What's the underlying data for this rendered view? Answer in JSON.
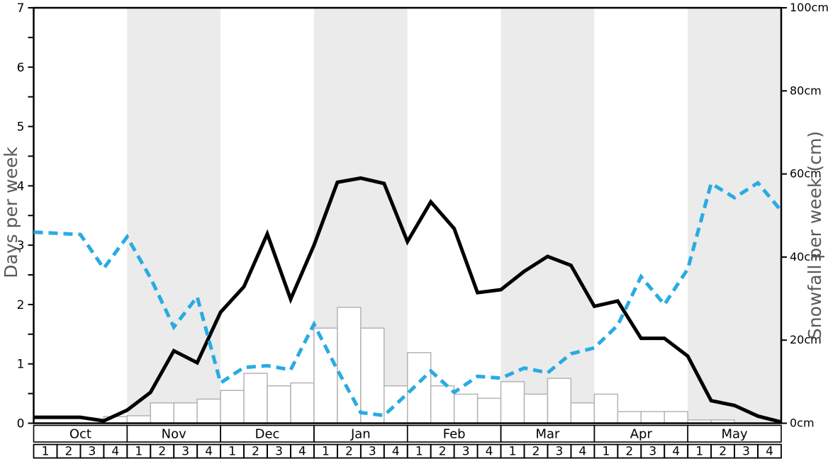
{
  "colors": {
    "band": "#ebebeb",
    "bar_fill": "#ffffff",
    "bar_stroke": "#b3b3b3",
    "frame": "#000000",
    "black_line": "#000000",
    "blue_line": "#29abe2",
    "axis_title": "#595959"
  },
  "chart_data": {
    "type": "line",
    "title": "",
    "x_unit": "week",
    "points_at": "week boundaries, 33 points from start of Oct to end of May",
    "months": [
      "Oct",
      "Nov",
      "Dec",
      "Jan",
      "Feb",
      "Mar",
      "Apr",
      "May"
    ],
    "week_labels": [
      "1",
      "2",
      "3",
      "4"
    ],
    "shaded_months": [
      "Nov",
      "Jan",
      "Mar",
      "May"
    ],
    "grid": "off",
    "legend": "none",
    "left_axis": {
      "label": "Days per week",
      "min": 0,
      "max": 7,
      "major_tick_labels": [
        "0",
        "1",
        "2",
        "3",
        "4",
        "5",
        "6",
        "7"
      ],
      "minor_tick_step": 0.5
    },
    "right_axis": {
      "label": "Snowfall per week (cm)",
      "min": 0,
      "max": 100,
      "tick_step": 20,
      "tick_labels": [
        "0cm",
        "20cm",
        "40cm",
        "60cm",
        "80cm",
        "100cm"
      ]
    },
    "series": [
      {
        "name": "black_line_days",
        "type": "line",
        "style": "solid",
        "axis": "left",
        "color": "#000000",
        "values": [
          0.1,
          0.1,
          0.1,
          0.04,
          0.22,
          0.52,
          1.22,
          1.02,
          1.87,
          2.3,
          3.19,
          2.09,
          3.0,
          4.06,
          4.13,
          4.04,
          3.06,
          3.73,
          3.28,
          2.2,
          2.25,
          2.56,
          2.81,
          2.66,
          1.97,
          2.06,
          1.43,
          1.43,
          1.13,
          0.38,
          0.3,
          0.12,
          0.02
        ]
      },
      {
        "name": "blue_dashed_line_days",
        "type": "line",
        "style": "dashed",
        "axis": "left",
        "color": "#29abe2",
        "values": [
          3.22,
          3.2,
          3.18,
          2.61,
          3.14,
          2.45,
          1.62,
          2.13,
          0.68,
          0.94,
          0.97,
          0.9,
          1.67,
          0.9,
          0.18,
          0.13,
          0.5,
          0.88,
          0.52,
          0.79,
          0.76,
          0.93,
          0.85,
          1.17,
          1.27,
          1.65,
          2.47,
          2.0,
          2.6,
          4.04,
          3.8,
          4.05,
          3.58
        ]
      },
      {
        "name": "snowfall_bars_cm",
        "type": "bar",
        "axis": "right",
        "fill": "#ffffff",
        "stroke": "#b3b3b3",
        "values": [
          0,
          0,
          0,
          1.6,
          1.8,
          4.9,
          4.9,
          5.8,
          7.9,
          12,
          9,
          9.7,
          22.9,
          27.9,
          22.9,
          9,
          17,
          9,
          7,
          6,
          10,
          7,
          10.8,
          4.9,
          7,
          2.8,
          2.8,
          2.8,
          0.8,
          0.8,
          0,
          0
        ]
      }
    ]
  }
}
